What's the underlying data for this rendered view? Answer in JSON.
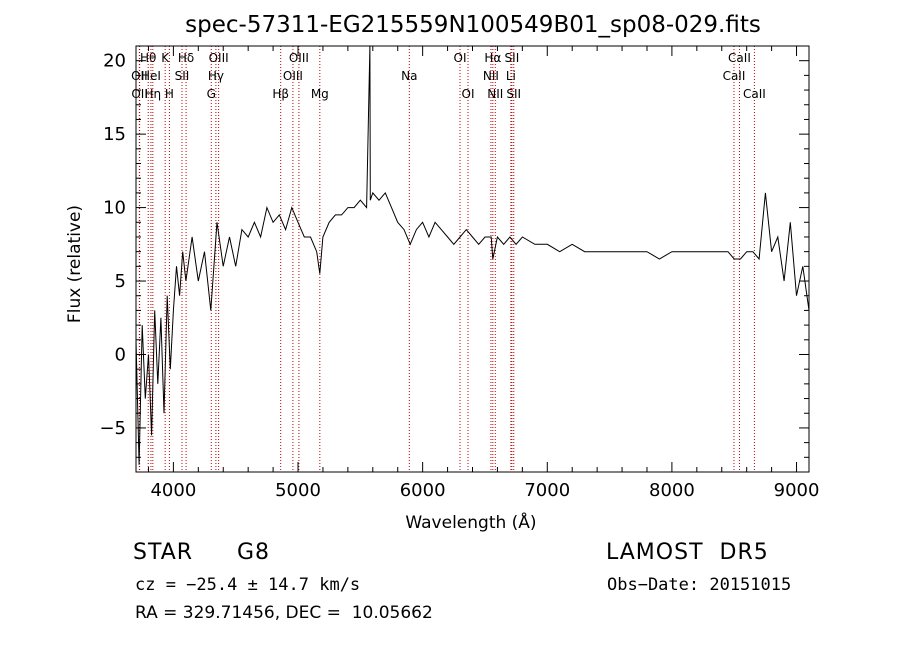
{
  "chart_data": {
    "type": "line",
    "title": "spec-57311-EG215559N100549B01_sp08-029.fits",
    "xlabel": "Wavelength (Å)",
    "ylabel": "Flux (relative)",
    "xlim": [
      3700,
      9100
    ],
    "ylim": [
      -8,
      21
    ],
    "x_ticks": [
      4000,
      5000,
      6000,
      7000,
      8000,
      9000
    ],
    "y_ticks": [
      -5,
      0,
      5,
      10,
      15,
      20
    ],
    "grid": false,
    "series": [
      {
        "color": "#000000",
        "x": [
          3700,
          3725,
          3750,
          3775,
          3800,
          3825,
          3850,
          3875,
          3900,
          3925,
          3950,
          3975,
          4000,
          4025,
          4050,
          4075,
          4100,
          4150,
          4200,
          4250,
          4300,
          4350,
          4400,
          4450,
          4500,
          4550,
          4600,
          4650,
          4700,
          4750,
          4800,
          4850,
          4900,
          4950,
          5000,
          5050,
          5100,
          5150,
          5175,
          5200,
          5250,
          5300,
          5350,
          5400,
          5450,
          5500,
          5550,
          5577,
          5580,
          5600,
          5650,
          5700,
          5750,
          5800,
          5850,
          5900,
          5950,
          6000,
          6050,
          6100,
          6150,
          6200,
          6250,
          6300,
          6350,
          6400,
          6450,
          6500,
          6550,
          6563,
          6600,
          6650,
          6700,
          6750,
          6800,
          6900,
          7000,
          7100,
          7200,
          7300,
          7400,
          7500,
          7600,
          7700,
          7800,
          7900,
          8000,
          8100,
          8200,
          8300,
          8400,
          8450,
          8500,
          8550,
          8600,
          8650,
          8700,
          8750,
          8800,
          8850,
          8900,
          8950,
          9000,
          9050,
          9100
        ],
        "y": [
          1,
          -7.5,
          2,
          -3,
          0,
          -5.5,
          3,
          -2,
          2.5,
          -4,
          4,
          -1,
          3,
          6,
          4,
          7,
          5,
          8,
          5,
          7,
          3,
          9,
          6,
          8,
          6,
          8.5,
          8,
          9,
          8,
          10,
          9,
          9.5,
          8.5,
          10,
          9,
          8,
          8,
          7,
          5.5,
          8,
          9,
          9.5,
          9.5,
          10,
          10,
          10.5,
          10,
          21,
          10.5,
          11,
          10.5,
          11,
          10,
          9,
          8.5,
          7.5,
          8.5,
          9,
          8,
          9,
          8.5,
          8,
          7.5,
          8,
          8.5,
          8,
          7.5,
          8,
          8,
          6.5,
          8,
          7.5,
          8,
          7.5,
          8,
          7.5,
          7.5,
          7,
          7.5,
          7,
          7,
          7,
          7,
          7,
          7,
          6.5,
          7,
          7,
          7,
          7,
          7,
          7,
          6.5,
          6.5,
          7,
          7,
          6.5,
          11,
          7,
          8,
          5,
          9,
          4,
          6,
          3
        ]
      }
    ],
    "line_markers": [
      {
        "label": "Hθ",
        "x": 3798,
        "row": 0
      },
      {
        "label": "OII",
        "x": 3727,
        "row": 1
      },
      {
        "label": "OII",
        "x": 3729,
        "row": 2
      },
      {
        "label": "HeI",
        "x": 3820,
        "row": 1
      },
      {
        "label": "Hη",
        "x": 3835,
        "row": 2
      },
      {
        "label": "K",
        "x": 3934,
        "row": 0
      },
      {
        "label": "H",
        "x": 3968,
        "row": 2
      },
      {
        "label": "Hδ",
        "x": 4102,
        "row": 0
      },
      {
        "label": "SII",
        "x": 4069,
        "row": 1
      },
      {
        "label": "OIII",
        "x": 4363,
        "row": 0
      },
      {
        "label": "Hγ",
        "x": 4341,
        "row": 1
      },
      {
        "label": "G",
        "x": 4304,
        "row": 2
      },
      {
        "label": "OIII",
        "x": 5007,
        "row": 0
      },
      {
        "label": "OIII",
        "x": 4959,
        "row": 1
      },
      {
        "label": "Hβ",
        "x": 4861,
        "row": 2
      },
      {
        "label": "Mg",
        "x": 5175,
        "row": 2
      },
      {
        "label": "Na",
        "x": 5893,
        "row": 1
      },
      {
        "label": "OI",
        "x": 6300,
        "row": 0
      },
      {
        "label": "OI",
        "x": 6364,
        "row": 2
      },
      {
        "label": "Hα",
        "x": 6563,
        "row": 0
      },
      {
        "label": "NII",
        "x": 6548,
        "row": 1
      },
      {
        "label": "NII",
        "x": 6583,
        "row": 2
      },
      {
        "label": "SII",
        "x": 6716,
        "row": 0
      },
      {
        "label": "Li",
        "x": 6708,
        "row": 1
      },
      {
        "label": "SII",
        "x": 6731,
        "row": 2
      },
      {
        "label": "CaII",
        "x": 8542,
        "row": 0
      },
      {
        "label": "CaII",
        "x": 8498,
        "row": 1
      },
      {
        "label": "CaII",
        "x": 8662,
        "row": 2
      }
    ]
  },
  "info": {
    "object_type": "STAR",
    "subclass": "G8",
    "survey": "LAMOST  DR5",
    "cz": "cz = −25.4 ± 14.7 km/s",
    "obs_date": "Obs−Date: 20151015",
    "radec": "RA = 329.71456, DEC =  10.05662"
  }
}
